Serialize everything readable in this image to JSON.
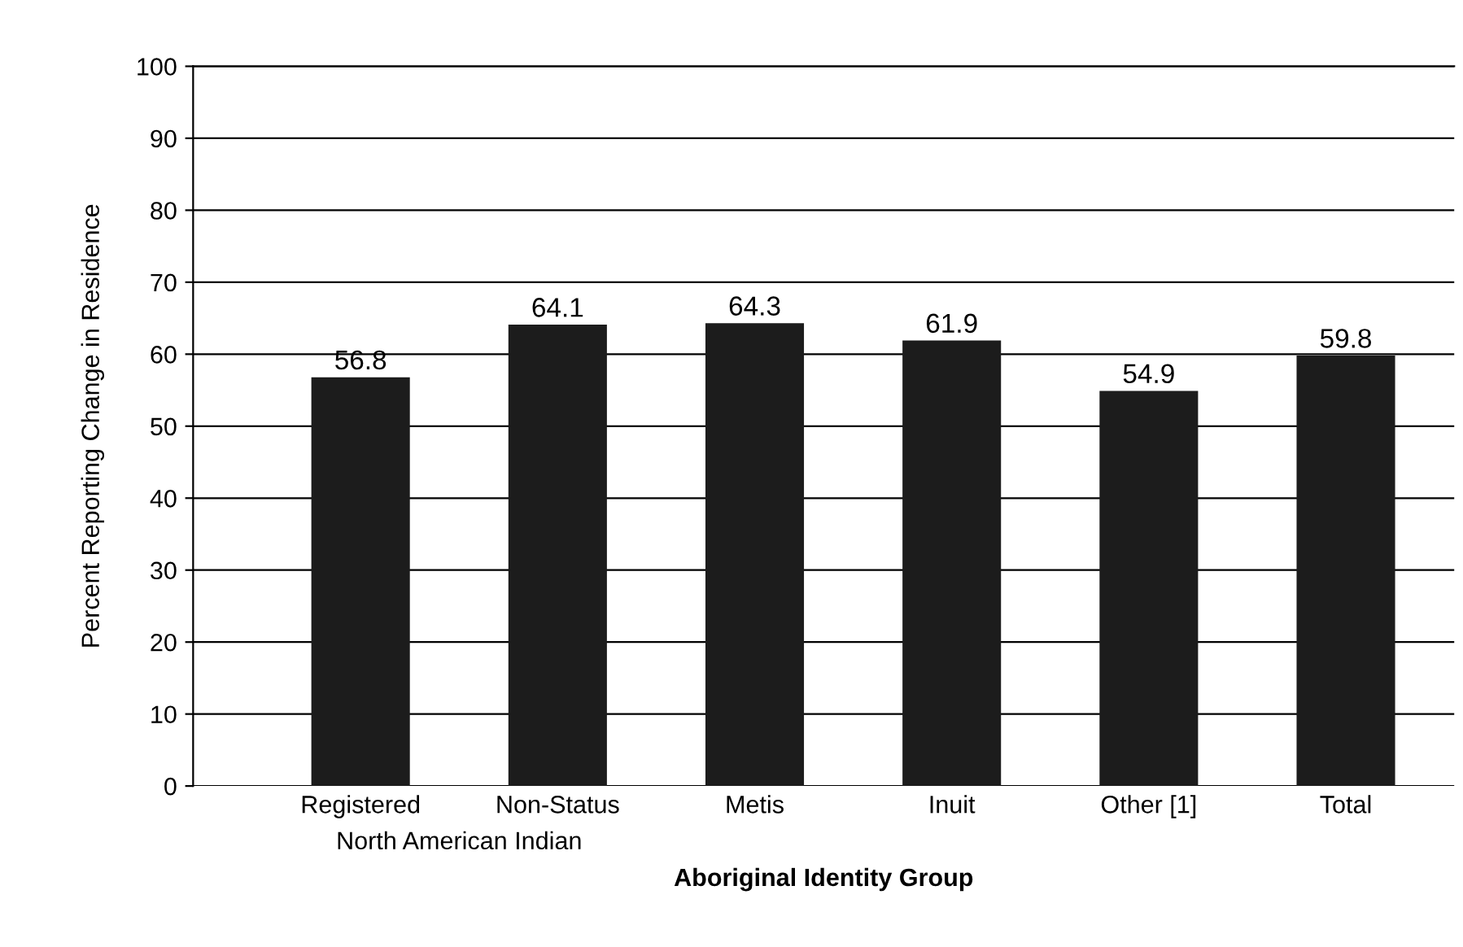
{
  "chart_data": {
    "type": "bar",
    "categories": [
      "Registered",
      "Non-Status",
      "Metis",
      "Inuit",
      "Other [1]",
      "Total"
    ],
    "values": [
      56.8,
      64.1,
      64.3,
      61.9,
      54.9,
      59.8
    ],
    "color": "#1c1c1c",
    "xlabel": "Aboriginal Identity Group",
    "ylabel": "Percent Reporting Change in Residence",
    "annotations": [
      "North American Indian"
    ],
    "ylim": [
      0,
      100
    ],
    "yticks": [
      0,
      10,
      20,
      30,
      40,
      50,
      60,
      70,
      80,
      90,
      100
    ],
    "grid": "y",
    "data_labels": true
  }
}
